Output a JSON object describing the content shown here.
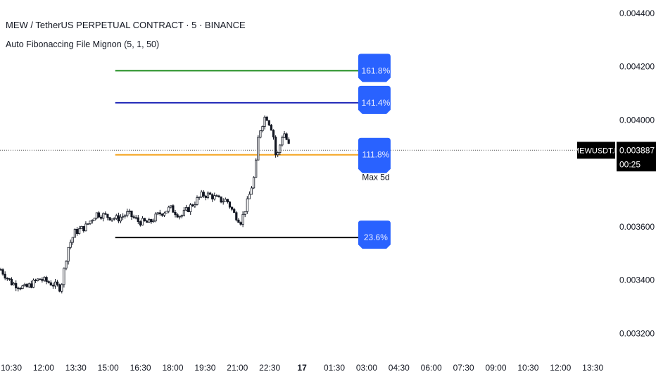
{
  "header": {
    "title": "MEW / TetherUS PERPETUAL CONTRACT · 5 · BINANCE",
    "indicator": "Auto Fibonaccing File Mignon (5, 1, 50)"
  },
  "chart_data": {
    "type": "candlestick",
    "symbol": "MEWUSDT.P",
    "last_price": "0.003887",
    "countdown": "00:25",
    "y_ticks": [
      "0.004400",
      "0.004200",
      "0.004000",
      "0.003600",
      "0.003400",
      "0.003200"
    ],
    "y_tick_values": [
      0.0044,
      0.0042,
      0.004,
      0.0036,
      0.0034,
      0.0032
    ],
    "ylim": [
      0.00313,
      0.00445
    ],
    "x_ticks": [
      "10:30",
      "12:00",
      "13:30",
      "15:00",
      "16:30",
      "18:00",
      "19:30",
      "21:00",
      "22:30",
      "17",
      "01:30",
      "03:00",
      "04:30",
      "06:00",
      "07:30",
      "09:00",
      "10:30",
      "12:00",
      "13:30"
    ],
    "price_path": [
      [
        0,
        0.00344
      ],
      [
        3,
        0.00339
      ],
      [
        7,
        0.00337
      ],
      [
        11,
        0.003405
      ],
      [
        14,
        0.00339
      ],
      [
        17,
        0.00337
      ],
      [
        19,
        0.00352
      ],
      [
        21,
        0.00358
      ],
      [
        24,
        0.0036
      ],
      [
        27,
        0.00365
      ],
      [
        30,
        0.00364
      ],
      [
        33,
        0.00363
      ],
      [
        36,
        0.00365
      ],
      [
        39,
        0.00362
      ],
      [
        42,
        0.003615
      ],
      [
        45,
        0.00365
      ],
      [
        48,
        0.00367
      ],
      [
        51,
        0.00364
      ],
      [
        54,
        0.00368
      ],
      [
        57,
        0.00372
      ],
      [
        59,
        0.00372
      ],
      [
        62,
        0.0037
      ],
      [
        64,
        0.0037
      ],
      [
        66,
        0.00365
      ],
      [
        68,
        0.00362
      ],
      [
        70,
        0.0037
      ],
      [
        72,
        0.0038
      ],
      [
        73,
        0.00395
      ],
      [
        75,
        0.00402
      ],
      [
        77,
        0.00396
      ],
      [
        78,
        0.00385
      ],
      [
        80,
        0.00396
      ],
      [
        82,
        0.003887
      ]
    ],
    "fib_levels": [
      {
        "label": "161.8%",
        "price": 0.004185,
        "color": "#1e8c1e"
      },
      {
        "label": "141.4%",
        "price": 0.004065,
        "color": "#2028b8"
      },
      {
        "label": "111.8%",
        "price": 0.00387,
        "color": "#f5a623",
        "sublabel": "Max 5d"
      },
      {
        "label": "23.6%",
        "price": 0.00356,
        "color": "#000000"
      }
    ],
    "label_color": "#2962ff",
    "price_tag_color": "#000000"
  }
}
